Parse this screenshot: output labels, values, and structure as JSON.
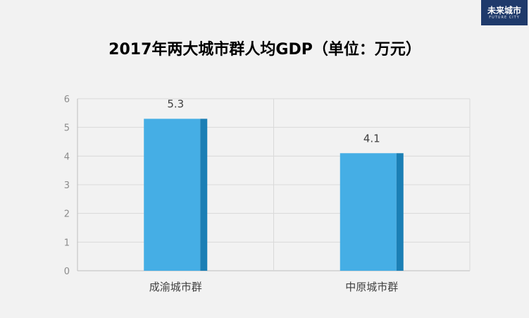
{
  "logo": {
    "text": "未来城市",
    "subtext": "FUTURE CITY"
  },
  "colors": {
    "bar_face": "#45aee5",
    "bar_side": "#1b7fb5",
    "grid": "#d9d9d9",
    "axis": "#bfbfbf",
    "background": "#f2f2f2"
  },
  "chart_data": {
    "type": "bar",
    "title": "2017年两大城市群人均GDP（单位：万元）",
    "categories": [
      "成渝城市群",
      "中原城市群"
    ],
    "values": [
      5.3,
      4.1
    ],
    "data_labels": [
      "5.3",
      "4.1"
    ],
    "ylim": [
      0,
      6
    ],
    "yticks": [
      0,
      1,
      2,
      3,
      4,
      5,
      6
    ],
    "xlabel": "",
    "ylabel": "",
    "grid": true,
    "legend": "none"
  }
}
